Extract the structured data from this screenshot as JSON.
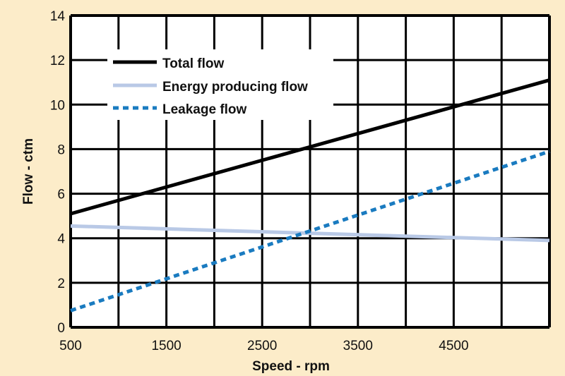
{
  "chart_data": {
    "type": "line",
    "title": "",
    "xlabel": "Speed - rpm",
    "ylabel": "Flow - ctm",
    "xlim": [
      500,
      5500
    ],
    "ylim": [
      0,
      14
    ],
    "xticks": [
      500,
      1500,
      2500,
      3500,
      4500
    ],
    "yticks": [
      0,
      2,
      4,
      6,
      8,
      10,
      12,
      14
    ],
    "grid": true,
    "legend_position": "top-left",
    "series": [
      {
        "name": "Total flow",
        "color": "#000000",
        "style": "solid",
        "x": [
          500,
          5500
        ],
        "y": [
          5.1,
          11.1
        ]
      },
      {
        "name": "Energy producing flow",
        "color": "#b9c9e6",
        "style": "solid",
        "x": [
          500,
          5500
        ],
        "y": [
          4.55,
          3.9
        ]
      },
      {
        "name": "Leakage flow",
        "color": "#1a7bc0",
        "style": "dotted",
        "x": [
          500,
          5500
        ],
        "y": [
          0.75,
          7.9
        ]
      }
    ]
  },
  "colors": {
    "background": "#fcecc9",
    "plot_background": "#ffffff",
    "grid": "#000000"
  }
}
